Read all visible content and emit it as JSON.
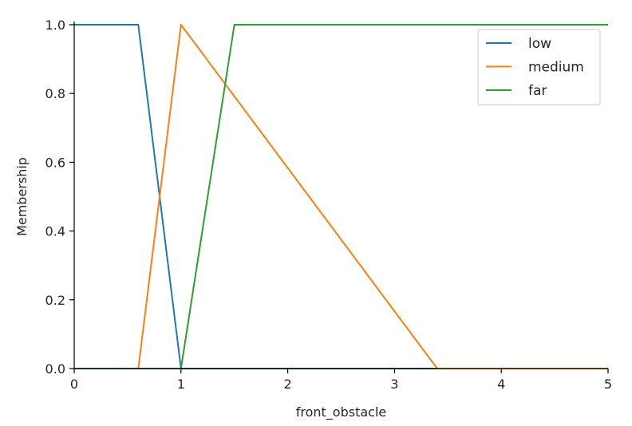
{
  "chart_data": {
    "type": "line",
    "title": "",
    "xlabel": "front_obstacle",
    "ylabel": "Membership",
    "xlim": [
      0,
      5
    ],
    "ylim": [
      0,
      1
    ],
    "xticks": [
      "0",
      "1",
      "2",
      "3",
      "4",
      "5"
    ],
    "yticks": [
      "0.0",
      "0.2",
      "0.4",
      "0.6",
      "0.8",
      "1.0"
    ],
    "grid": false,
    "legend_position": "top-right",
    "series": [
      {
        "name": "low",
        "color": "#1f77b4",
        "x": [
          0,
          0.6,
          1,
          5
        ],
        "y": [
          1,
          1,
          0,
          0
        ]
      },
      {
        "name": "medium",
        "color": "#ff7f0e",
        "x": [
          0,
          0.6,
          1,
          3.4,
          5
        ],
        "y": [
          0,
          0,
          1,
          0,
          0
        ]
      },
      {
        "name": "far",
        "color": "#2ca02c",
        "x": [
          0,
          1,
          1.5,
          5
        ],
        "y": [
          0,
          0,
          1,
          1
        ]
      }
    ]
  }
}
